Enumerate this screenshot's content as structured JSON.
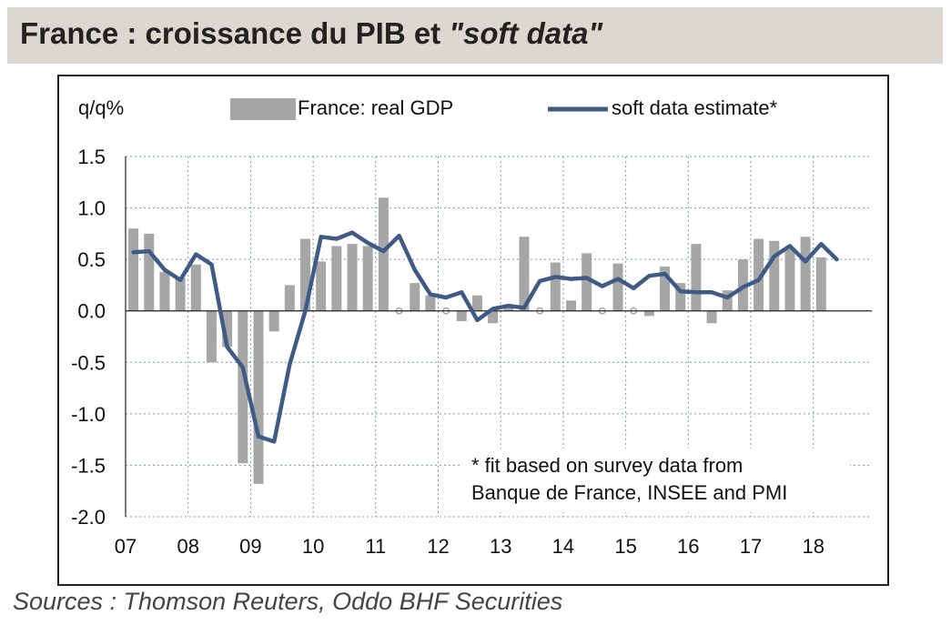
{
  "title": {
    "text": "France : croissance du PIB et ",
    "emphasis": "\"soft data\""
  },
  "sources": "Sources : Thomson Reuters, Oddo BHF Securities",
  "chart_data": {
    "type": "bar",
    "ylabel": "q/q%",
    "ylim": [
      -2.0,
      1.5
    ],
    "yticks": [
      "1.5",
      "1.0",
      "0.5",
      "0.0",
      "-0.5",
      "-1.0",
      "-1.5",
      "-2.0"
    ],
    "xticks": [
      "07",
      "08",
      "09",
      "10",
      "11",
      "12",
      "13",
      "14",
      "15",
      "16",
      "17",
      "18"
    ],
    "grid": true,
    "legend_position": "top",
    "annotation": [
      "* fit based on survey data from",
      "Banque de France, INSEE and PMI"
    ],
    "colors": {
      "bars": "#a6a6a6",
      "line": "#3f5b85",
      "grid": "#7f95b5"
    },
    "series": [
      {
        "name": "France: real GDP",
        "type": "bar",
        "x": [
          "2007Q1",
          "2007Q2",
          "2007Q3",
          "2007Q4",
          "2008Q1",
          "2008Q2",
          "2008Q3",
          "2008Q4",
          "2009Q1",
          "2009Q2",
          "2009Q3",
          "2009Q4",
          "2010Q1",
          "2010Q2",
          "2010Q3",
          "2010Q4",
          "2011Q1",
          "2011Q2",
          "2011Q3",
          "2011Q4",
          "2012Q1",
          "2012Q2",
          "2012Q3",
          "2012Q4",
          "2013Q1",
          "2013Q2",
          "2013Q3",
          "2013Q4",
          "2014Q1",
          "2014Q2",
          "2014Q3",
          "2014Q4",
          "2015Q1",
          "2015Q2",
          "2015Q3",
          "2015Q4",
          "2016Q1",
          "2016Q2",
          "2016Q3",
          "2016Q4",
          "2017Q1",
          "2017Q2",
          "2017Q3",
          "2017Q4",
          "2018Q1"
        ],
        "values": [
          0.8,
          0.75,
          0.38,
          0.32,
          0.45,
          -0.5,
          -0.35,
          -1.48,
          -1.68,
          -0.2,
          0.25,
          0.7,
          0.48,
          0.63,
          0.65,
          0.63,
          1.1,
          0.0,
          0.27,
          0.15,
          0.0,
          -0.1,
          0.15,
          -0.12,
          0.05,
          0.72,
          0.0,
          0.47,
          0.1,
          0.56,
          0.0,
          0.46,
          0.0,
          -0.05,
          0.43,
          0.27,
          0.65,
          -0.12,
          0.2,
          0.5,
          0.7,
          0.68,
          0.6,
          0.72,
          0.52
        ],
        "values_pos": [
          0.8,
          0.75,
          0.38,
          0.32,
          0.45,
          0,
          0,
          0,
          0,
          0,
          0.25,
          0.7,
          0.48,
          0.63,
          0.65,
          0.63,
          1.1,
          0,
          0.27,
          0.15,
          0,
          0,
          0.15,
          0,
          0.05,
          0.72,
          0,
          0.47,
          0.1,
          0.56,
          0,
          0.46,
          0,
          0,
          0.43,
          0.27,
          0.65,
          0,
          0.2,
          0.5,
          0.7,
          0.68,
          0.6,
          0.72,
          0.52
        ]
      },
      {
        "name": "soft data estimate*",
        "type": "line",
        "x": [
          "2007Q1",
          "2007Q2",
          "2007Q3",
          "2007Q4",
          "2008Q1",
          "2008Q2",
          "2008Q3",
          "2008Q4",
          "2009Q1",
          "2009Q2",
          "2009Q3",
          "2009Q4",
          "2010Q1",
          "2010Q2",
          "2010Q3",
          "2010Q4",
          "2011Q1",
          "2011Q2",
          "2011Q3",
          "2011Q4",
          "2012Q1",
          "2012Q2",
          "2012Q3",
          "2012Q4",
          "2013Q1",
          "2013Q2",
          "2013Q3",
          "2013Q4",
          "2014Q1",
          "2014Q2",
          "2014Q3",
          "2014Q4",
          "2015Q1",
          "2015Q2",
          "2015Q3",
          "2015Q4",
          "2016Q1",
          "2016Q2",
          "2016Q3",
          "2016Q4",
          "2017Q1",
          "2017Q2",
          "2017Q3",
          "2017Q4",
          "2018Q1",
          "2018Q2"
        ],
        "values": [
          0.57,
          0.58,
          0.4,
          0.3,
          0.55,
          0.45,
          -0.35,
          -0.55,
          -1.22,
          -1.27,
          -0.52,
          0.0,
          0.72,
          0.7,
          0.76,
          0.66,
          0.58,
          0.73,
          0.4,
          0.16,
          0.13,
          0.18,
          -0.09,
          0.02,
          0.05,
          0.03,
          0.29,
          0.33,
          0.31,
          0.32,
          0.24,
          0.31,
          0.22,
          0.34,
          0.36,
          0.19,
          0.18,
          0.18,
          0.13,
          0.23,
          0.3,
          0.53,
          0.63,
          0.48,
          0.65,
          0.5
        ]
      }
    ]
  }
}
